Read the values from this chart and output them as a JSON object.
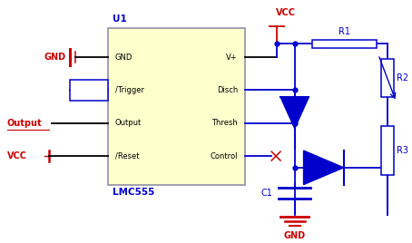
{
  "bg_color": "#ffffff",
  "ic_color": "#ffffcc",
  "ic_border_color": "#9999aa",
  "blue": "#0000cc",
  "red": "#cc0000",
  "black": "#000000",
  "pins_left": [
    "GND",
    "/Trigger",
    "Output",
    "/Reset"
  ],
  "pins_right": [
    "V+",
    "Disch",
    "Thresh",
    "Control"
  ],
  "ic_label": "U1",
  "ic_sublabel": "LMC555"
}
